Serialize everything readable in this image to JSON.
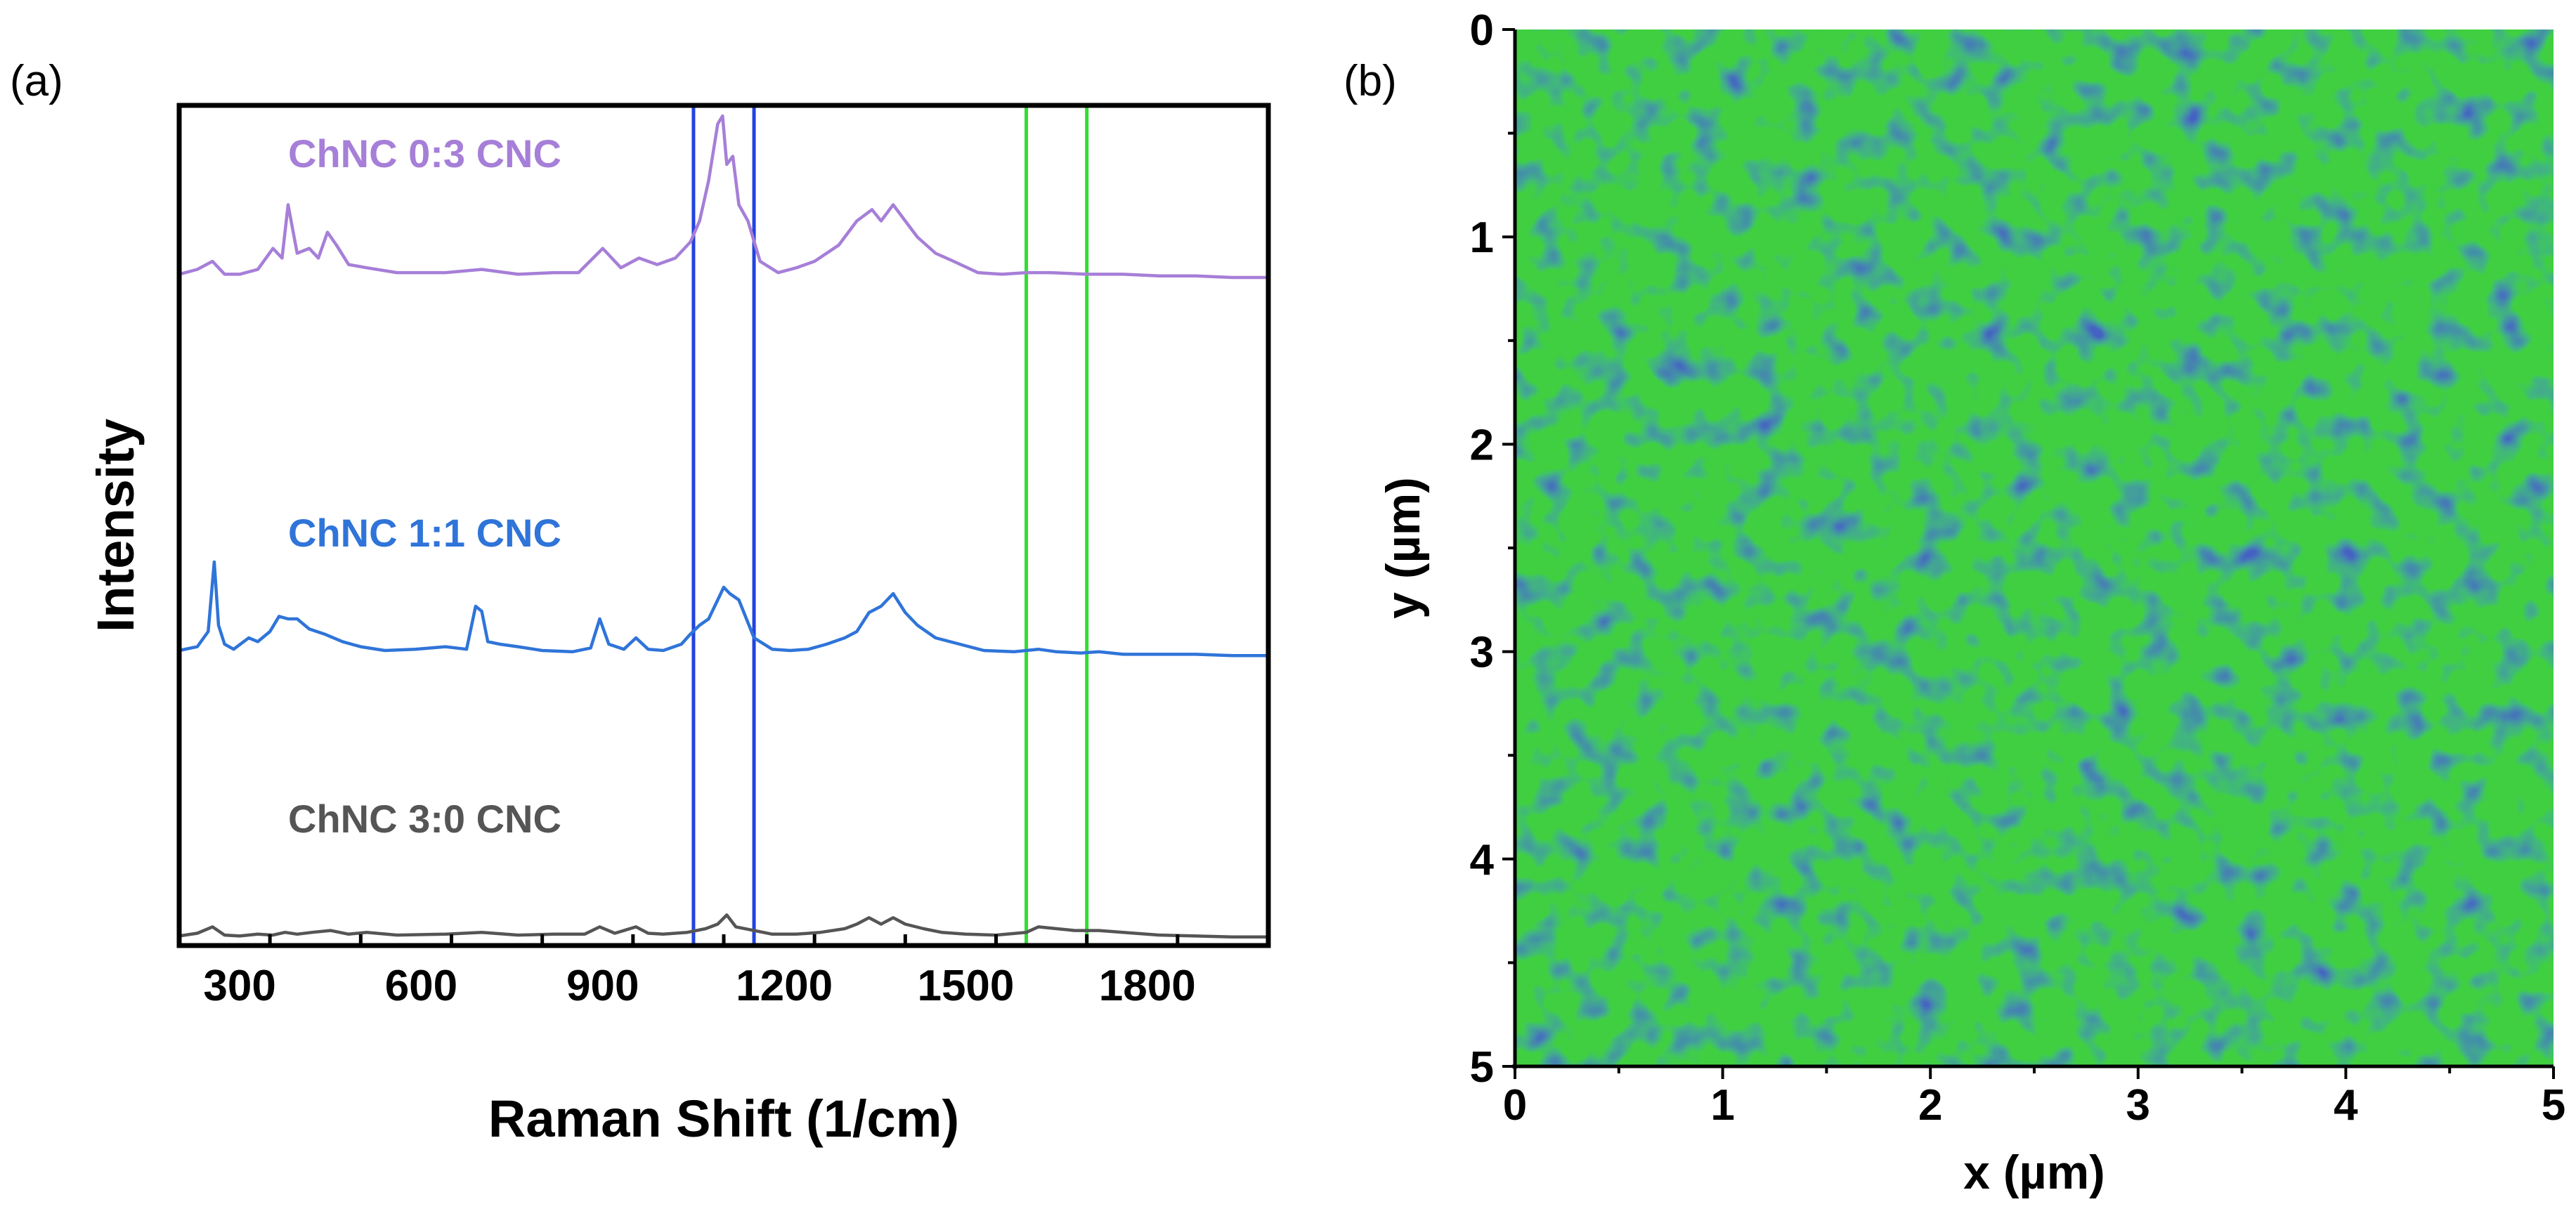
{
  "chart_data": [
    {
      "panel": "(a)",
      "type": "line",
      "xlabel": "Raman Shift (1/cm)",
      "ylabel": "Intensity",
      "xlim": [
        200,
        2000
      ],
      "xticks": [
        300,
        600,
        900,
        1200,
        1500,
        1800
      ],
      "grid": false,
      "series": [
        {
          "name": "ChNC 0:3 CNC",
          "color": "#a67fd8",
          "offset": 2,
          "x": [
            200,
            230,
            255,
            275,
            300,
            330,
            355,
            370,
            380,
            395,
            415,
            430,
            445,
            460,
            480,
            510,
            560,
            640,
            700,
            760,
            820,
            860,
            900,
            930,
            960,
            990,
            1020,
            1045,
            1060,
            1075,
            1090,
            1098,
            1105,
            1115,
            1125,
            1140,
            1160,
            1190,
            1220,
            1250,
            1290,
            1320,
            1345,
            1360,
            1380,
            1400,
            1420,
            1450,
            1480,
            1520,
            1560,
            1600,
            1640,
            1700,
            1760,
            1820,
            1880,
            1940,
            2000
          ],
          "y": [
            0.02,
            0.05,
            0.1,
            0.02,
            0.02,
            0.05,
            0.18,
            0.12,
            0.45,
            0.15,
            0.18,
            0.12,
            0.28,
            0.2,
            0.08,
            0.06,
            0.03,
            0.03,
            0.05,
            0.02,
            0.03,
            0.03,
            0.18,
            0.06,
            0.12,
            0.08,
            0.12,
            0.22,
            0.35,
            0.6,
            0.95,
            1.0,
            0.7,
            0.75,
            0.45,
            0.35,
            0.1,
            0.03,
            0.06,
            0.1,
            0.2,
            0.35,
            0.42,
            0.35,
            0.45,
            0.35,
            0.25,
            0.15,
            0.1,
            0.03,
            0.02,
            0.03,
            0.03,
            0.02,
            0.02,
            0.01,
            0.01,
            0.0,
            0.0
          ]
        },
        {
          "name": "ChNC 1:1 CNC",
          "color": "#2f74d9",
          "offset": 1,
          "x": [
            200,
            230,
            248,
            258,
            265,
            275,
            290,
            315,
            330,
            350,
            365,
            380,
            395,
            415,
            440,
            470,
            500,
            540,
            590,
            640,
            675,
            690,
            700,
            710,
            730,
            760,
            800,
            850,
            880,
            895,
            910,
            935,
            955,
            975,
            1000,
            1030,
            1045,
            1060,
            1075,
            1090,
            1100,
            1110,
            1125,
            1150,
            1180,
            1210,
            1240,
            1270,
            1300,
            1320,
            1340,
            1360,
            1380,
            1400,
            1420,
            1450,
            1490,
            1530,
            1580,
            1620,
            1650,
            1690,
            1720,
            1760,
            1820,
            1880,
            1940,
            2000
          ],
          "y": [
            0.05,
            0.08,
            0.2,
            0.75,
            0.25,
            0.1,
            0.06,
            0.15,
            0.12,
            0.2,
            0.32,
            0.3,
            0.3,
            0.22,
            0.18,
            0.12,
            0.08,
            0.05,
            0.06,
            0.08,
            0.06,
            0.4,
            0.36,
            0.12,
            0.1,
            0.08,
            0.05,
            0.04,
            0.07,
            0.3,
            0.1,
            0.06,
            0.15,
            0.06,
            0.05,
            0.1,
            0.18,
            0.25,
            0.3,
            0.45,
            0.55,
            0.5,
            0.45,
            0.15,
            0.06,
            0.05,
            0.06,
            0.1,
            0.15,
            0.2,
            0.35,
            0.4,
            0.5,
            0.35,
            0.25,
            0.15,
            0.1,
            0.05,
            0.04,
            0.06,
            0.04,
            0.03,
            0.04,
            0.02,
            0.02,
            0.02,
            0.01,
            0.01
          ]
        },
        {
          "name": "ChNC 3:0 CNC",
          "color": "#555555",
          "offset": 0,
          "x": [
            200,
            230,
            255,
            275,
            300,
            330,
            355,
            375,
            395,
            420,
            450,
            480,
            510,
            560,
            640,
            700,
            760,
            820,
            870,
            895,
            920,
            955,
            975,
            1000,
            1040,
            1070,
            1090,
            1105,
            1120,
            1150,
            1180,
            1220,
            1260,
            1300,
            1320,
            1340,
            1360,
            1380,
            1400,
            1430,
            1460,
            1500,
            1550,
            1600,
            1620,
            1650,
            1680,
            1720,
            1760,
            1820,
            1880,
            1940,
            2000
          ],
          "y": [
            0.02,
            0.05,
            0.12,
            0.03,
            0.02,
            0.04,
            0.03,
            0.06,
            0.04,
            0.06,
            0.08,
            0.04,
            0.06,
            0.03,
            0.04,
            0.06,
            0.03,
            0.04,
            0.04,
            0.12,
            0.05,
            0.12,
            0.05,
            0.04,
            0.06,
            0.1,
            0.15,
            0.25,
            0.12,
            0.08,
            0.04,
            0.04,
            0.06,
            0.1,
            0.15,
            0.22,
            0.15,
            0.22,
            0.15,
            0.1,
            0.06,
            0.04,
            0.03,
            0.06,
            0.12,
            0.1,
            0.08,
            0.08,
            0.06,
            0.03,
            0.02,
            0.01,
            0.01
          ]
        }
      ],
      "markers": [
        {
          "x": 1050,
          "color": "#2244dd"
        },
        {
          "x": 1150,
          "color": "#2244dd"
        },
        {
          "x": 1600,
          "color": "#33dd33"
        },
        {
          "x": 1700,
          "color": "#33dd33"
        }
      ]
    },
    {
      "panel": "(b)",
      "type": "heatmap",
      "xlabel": "x (µm)",
      "ylabel": "y (µm)",
      "xlim": [
        0,
        5
      ],
      "ylim": [
        0,
        5
      ],
      "xticks": [
        0,
        1,
        2,
        3,
        4,
        5
      ],
      "yticks": [
        0,
        1,
        2,
        3,
        4,
        5
      ],
      "yaxis_inverted": true,
      "colors": {
        "low": "#0f1f8a",
        "high": "#3fcf3f"
      }
    }
  ]
}
